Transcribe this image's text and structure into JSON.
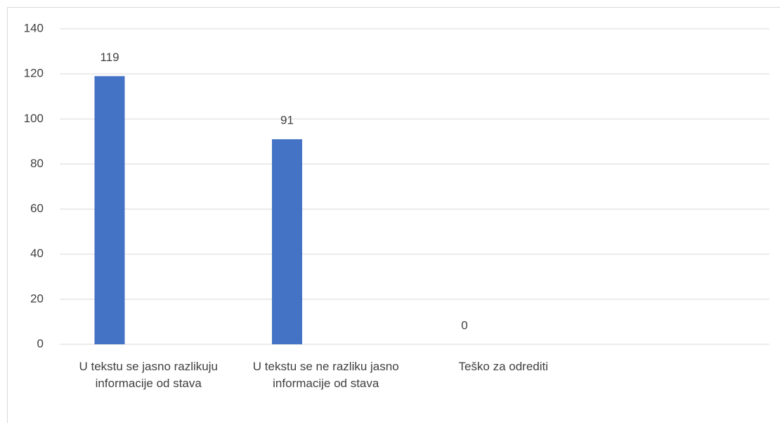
{
  "chart_data": {
    "type": "bar",
    "categories": [
      "U tekstu se jasno razlikuju informacije od stava",
      "U tekstu se ne razliku jasno informacije od stava",
      "Teško za odrediti",
      null
    ],
    "values": [
      119,
      91,
      0,
      null
    ],
    "color": "#4472c4",
    "ylim": [
      0,
      140
    ],
    "yticks": [
      0,
      20,
      40,
      60,
      80,
      100,
      120,
      140
    ],
    "grid": true
  }
}
